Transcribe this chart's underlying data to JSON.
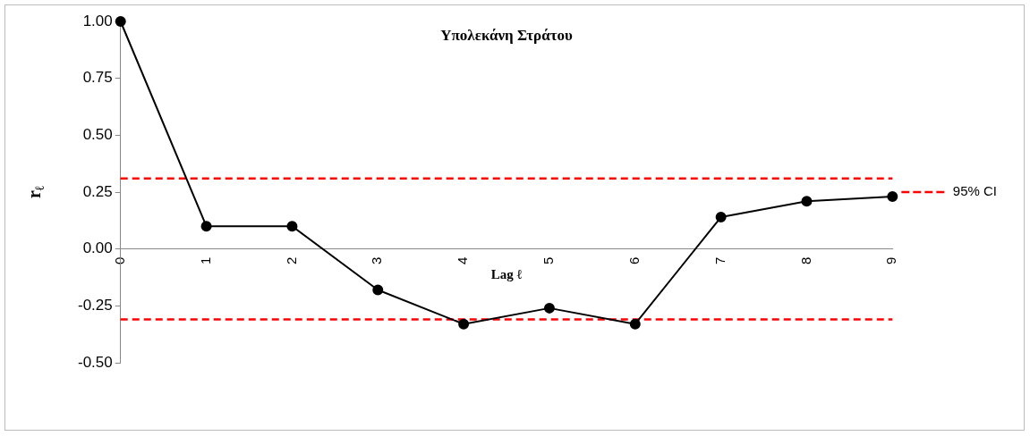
{
  "chart_data": {
    "type": "line",
    "title": "Υπολεκάνη Στράτου",
    "xlabel": "Lag ℓ",
    "ylabel": "r$_{ℓ}$",
    "categories": [
      "0",
      "1",
      "2",
      "3",
      "4",
      "5",
      "6",
      "7",
      "8",
      "9"
    ],
    "series": [
      {
        "color": "#000000",
        "values": [
          1.0,
          0.1,
          0.1,
          -0.18,
          -0.33,
          -0.26,
          -0.33,
          0.14,
          0.21,
          0.23
        ]
      }
    ],
    "ylim": [
      -0.5,
      1.0
    ],
    "yticks": [
      {
        "value": -0.5,
        "label": "-0.50"
      },
      {
        "value": -0.25,
        "label": "-0.25"
      },
      {
        "value": 0,
        "label": "0.00"
      },
      {
        "value": 0.25,
        "label": "0.25"
      },
      {
        "value": 0.5,
        "label": "0.50"
      },
      {
        "value": 0.75,
        "label": "0.75"
      },
      {
        "value": 1.0,
        "label": "1.00"
      }
    ],
    "ref_lines": [
      {
        "axis": "y",
        "value": 0.31,
        "label": "95% CI",
        "color": "#ff0000",
        "line_style": "dashed"
      },
      {
        "axis": "y",
        "value": -0.31,
        "color": "#ff0000",
        "line_style": "dashed"
      }
    ],
    "marker": "circle",
    "line_style": "solid",
    "grid": false,
    "legend": "right"
  }
}
